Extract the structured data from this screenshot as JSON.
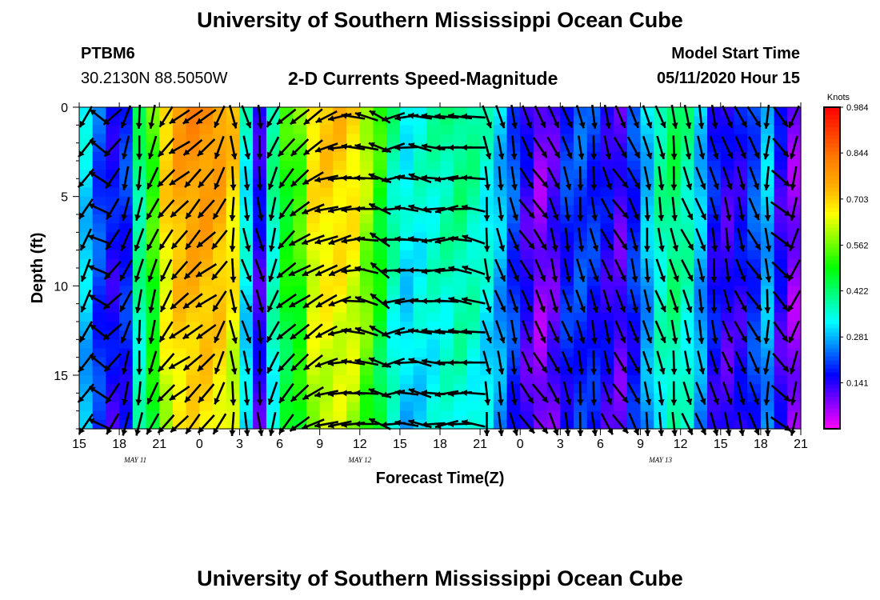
{
  "header": {
    "title": "University of Southern Mississippi Ocean Cube",
    "station_id": "PTBM6",
    "station_coords": "30.2130N 88.5050W",
    "plot_title": "2-D Currents Speed-Magnitude",
    "start_label": "Model Start Time",
    "start_time": "05/11/2020 Hour 15"
  },
  "footer": {
    "title": "University of Southern Mississippi Ocean Cube"
  },
  "chart_data": {
    "type": "heatmap",
    "title": "2-D Currents Speed-Magnitude",
    "xlabel": "Forecast Time(Z)",
    "ylabel": "Depth (ft)",
    "x_tick_labels": [
      "15",
      "18",
      "21",
      "0",
      "3",
      "6",
      "9",
      "12",
      "15",
      "18",
      "21",
      "0",
      "3",
      "6",
      "9",
      "12",
      "15",
      "18",
      "21"
    ],
    "x_date_labels": [
      {
        "text": "MAY 11",
        "tick_index": 1.4
      },
      {
        "text": "MAY 12",
        "tick_index": 7.0
      },
      {
        "text": "MAY 13",
        "tick_index": 14.5
      }
    ],
    "y_ticks": [
      0,
      5,
      10,
      15
    ],
    "ylim": [
      0,
      18
    ],
    "y_inverted": true,
    "x_step_hours": 3,
    "colorbar": {
      "label": "Knots",
      "tick_values": [
        "0.984",
        "0.844",
        "0.703",
        "0.562",
        "0.422",
        "0.281",
        "0.141"
      ],
      "range": [
        0,
        0.984
      ],
      "colors": [
        "#ff00ff",
        "#8000ff",
        "#0000ff",
        "#0080ff",
        "#00ffff",
        "#00ff80",
        "#00ff00",
        "#80ff00",
        "#ffff00",
        "#ffb000",
        "#ff8000",
        "#ff4000",
        "#ff0000"
      ]
    },
    "speed_profile_knots": [
      0.32,
      0.22,
      0.17,
      0.2,
      0.42,
      0.55,
      0.72,
      0.78,
      0.8,
      0.8,
      0.78,
      0.72,
      0.35,
      0.15,
      0.4,
      0.52,
      0.56,
      0.7,
      0.72,
      0.72,
      0.7,
      0.62,
      0.52,
      0.4,
      0.34,
      0.36,
      0.38,
      0.4,
      0.42,
      0.4,
      0.36,
      0.3,
      0.22,
      0.14,
      0.08,
      0.12,
      0.2,
      0.22,
      0.2,
      0.16,
      0.12,
      0.2,
      0.3,
      0.4,
      0.44,
      0.4,
      0.3,
      0.18,
      0.14,
      0.16,
      0.22,
      0.3,
      0.15,
      0.08
    ],
    "arrow_direction_deg": [
      210,
      300,
      220,
      200,
      190,
      200,
      215,
      230,
      225,
      230,
      210,
      175,
      165,
      170,
      200,
      225,
      235,
      240,
      250,
      255,
      270,
      280,
      300,
      260,
      270,
      280,
      270,
      265,
      275,
      280,
      170,
      165,
      165,
      150,
      150,
      160,
      165,
      170,
      170,
      160,
      150,
      160,
      170,
      165,
      170,
      160,
      165,
      170,
      165,
      160,
      150,
      180,
      135,
      200
    ]
  }
}
